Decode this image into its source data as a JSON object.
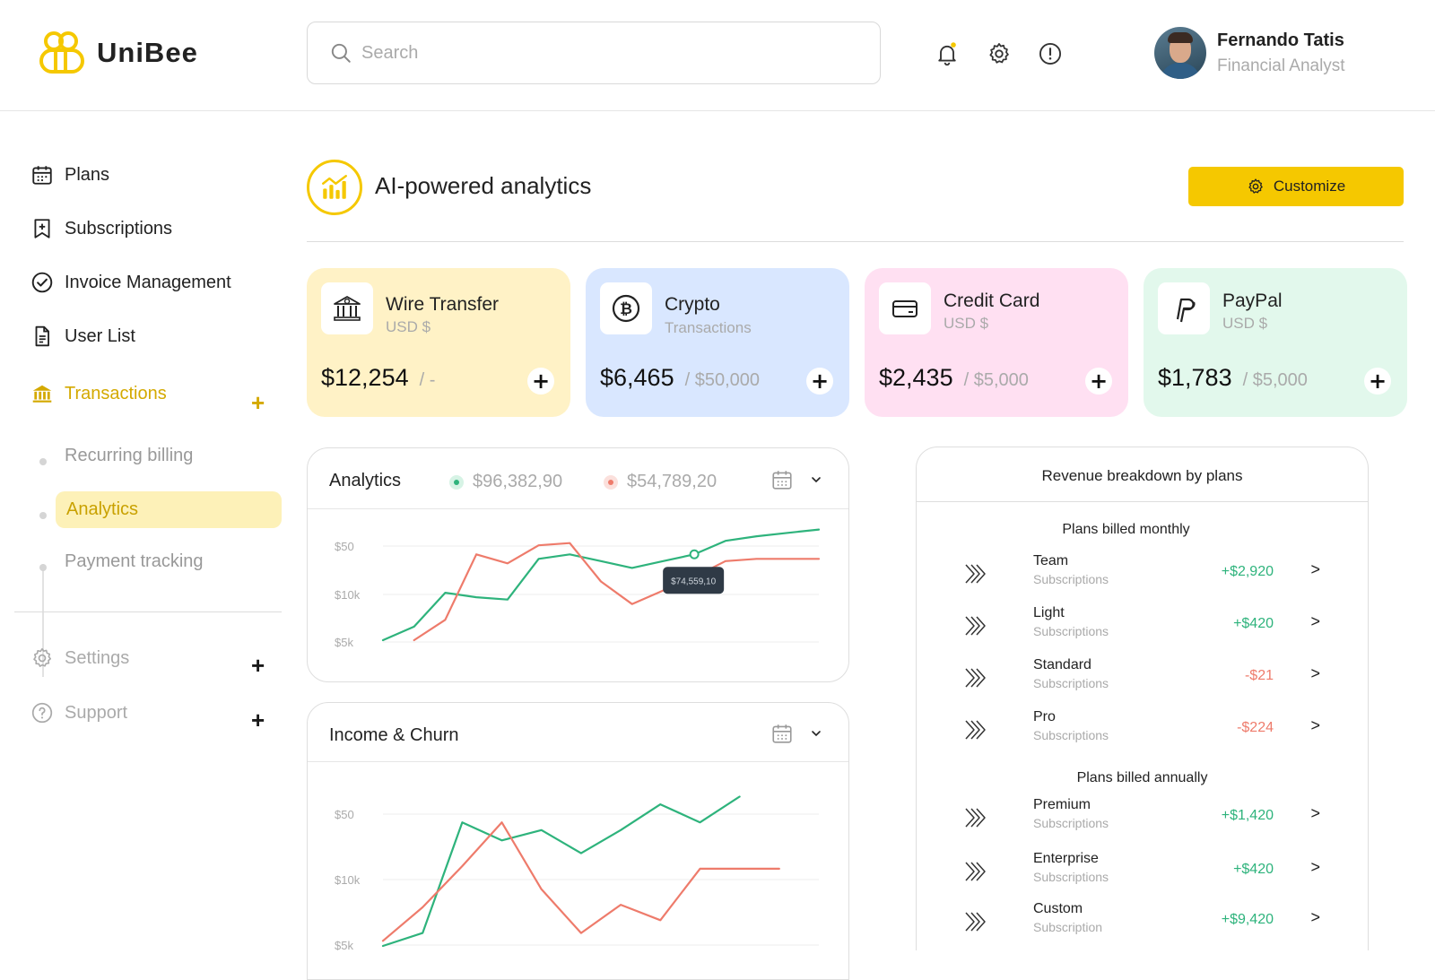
{
  "brand": {
    "name": "UniBee"
  },
  "search": {
    "placeholder": "Search",
    "value": ""
  },
  "profile": {
    "name": "Fernando Tatis",
    "role": "Financial Analyst"
  },
  "colors": {
    "accent": "#f5c800",
    "positive": "#2eb37c",
    "negative": "#ee7b6b"
  },
  "sidebar": {
    "items": [
      {
        "label": "Plans",
        "icon": "calendar-icon"
      },
      {
        "label": "Subscriptions",
        "icon": "bookmark-icon"
      },
      {
        "label": "Invoice Management",
        "icon": "check-circle-icon"
      },
      {
        "label": "User List",
        "icon": "document-icon"
      },
      {
        "label": "Transactions",
        "icon": "bank-icon",
        "active": true
      }
    ],
    "transactions_sub": [
      "Recurring billing",
      "Analytics",
      "Payment tracking"
    ],
    "bottom": [
      {
        "label": "Settings",
        "icon": "gear-icon"
      },
      {
        "label": "Support",
        "icon": "help-icon"
      }
    ],
    "plus": "+"
  },
  "header": {
    "title": "AI-powered analytics",
    "customize_label": "Customize"
  },
  "cards": [
    {
      "title": "Wire Transfer",
      "subtitle": "USD $",
      "amount": "$12,254",
      "limit": "/ -",
      "icon": "bank-icon",
      "bg": "#fff2c6"
    },
    {
      "title": "Crypto",
      "subtitle": "Transactions",
      "amount": "$6,465",
      "limit": "/ $50,000",
      "icon": "bitcoin-icon",
      "bg": "#d9e7ff"
    },
    {
      "title": "Credit Card",
      "subtitle": "USD $",
      "amount": "$2,435",
      "limit": "/ $5,000",
      "icon": "credit-card-icon",
      "bg": "#ffe0f2"
    },
    {
      "title": "PayPal",
      "subtitle": "USD $",
      "amount": "$1,783",
      "limit": "/ $5,000",
      "icon": "paypal-icon",
      "bg": "#e2f8ec"
    }
  ],
  "analytics": {
    "title": "Analytics",
    "legend": [
      {
        "value": "$96,382,90",
        "color": "#2eb37c"
      },
      {
        "value": "$54,789,20",
        "color": "#ee7b6b"
      }
    ],
    "tooltip": "$74,559,10"
  },
  "income": {
    "title": "Income & Churn"
  },
  "chart_data": [
    {
      "type": "line",
      "title": "Analytics",
      "y_ticks": [
        "$50",
        "$10k",
        "$5k"
      ],
      "x": [
        1,
        2,
        3,
        4,
        5,
        6,
        7,
        8,
        9,
        10,
        11,
        12,
        13,
        14,
        15
      ],
      "series": [
        {
          "color": "#2eb37c",
          "values": [
            1.0,
            1.6,
            3.1,
            2.9,
            2.8,
            4.6,
            4.8,
            4.5,
            4.2,
            4.5,
            4.8,
            5.4,
            5.6,
            5.75,
            5.9
          ]
        },
        {
          "color": "#ee7b6b",
          "values": [
            null,
            1.0,
            1.9,
            4.8,
            4.4,
            5.2,
            5.3,
            3.6,
            2.6,
            3.2,
            3.8,
            4.5,
            4.6,
            4.6,
            4.6
          ]
        }
      ]
    },
    {
      "type": "line",
      "title": "Income & Churn",
      "y_ticks": [
        "$50",
        "$10k",
        "$5k"
      ],
      "x": [
        1,
        2,
        3,
        4,
        5,
        6,
        7,
        8,
        9,
        10,
        11,
        12
      ],
      "series": [
        {
          "color": "#2eb37c",
          "values": [
            1.0,
            1.5,
            5.8,
            5.1,
            5.5,
            4.6,
            5.5,
            6.5,
            5.8,
            6.8,
            null,
            null
          ]
        },
        {
          "color": "#ee7b6b",
          "values": [
            1.2,
            2.5,
            4.1,
            5.8,
            3.2,
            1.5,
            2.6,
            2.0,
            4.0,
            4.0,
            4.0,
            null
          ]
        }
      ]
    }
  ],
  "revenue": {
    "title": "Revenue breakdown by plans",
    "monthly_label": "Plans billed monthly",
    "annual_label": "Plans billed annually",
    "monthly": [
      {
        "name": "Team",
        "sub": "Subscriptions",
        "value": "+$2,920",
        "sign": "pos"
      },
      {
        "name": "Light",
        "sub": "Subscriptions",
        "value": "+$420",
        "sign": "pos"
      },
      {
        "name": "Standard",
        "sub": "Subscriptions",
        "value": "-$21",
        "sign": "neg"
      },
      {
        "name": "Pro",
        "sub": "Subscriptions",
        "value": "-$224",
        "sign": "neg"
      }
    ],
    "annual": [
      {
        "name": "Premium",
        "sub": "Subscriptions",
        "value": "+$1,420",
        "sign": "pos"
      },
      {
        "name": "Enterprise",
        "sub": "Subscriptions",
        "value": "+$420",
        "sign": "pos"
      },
      {
        "name": "Custom",
        "sub": "Subscription",
        "value": "+$9,420",
        "sign": "pos"
      }
    ],
    "go": ">"
  }
}
